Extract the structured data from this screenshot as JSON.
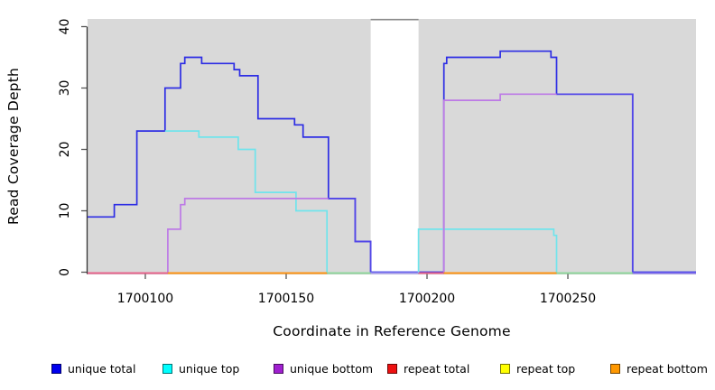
{
  "chart_data": {
    "type": "line",
    "step": true,
    "title": "",
    "xlabel": "Coordinate in Reference Genome",
    "ylabel": "Read Coverage Depth",
    "xlim": [
      1700079.5,
      1700295.5
    ],
    "ylim": [
      0,
      41.3
    ],
    "xticks": [
      1700100,
      1700150,
      1700200,
      1700250
    ],
    "yticks": [
      0,
      10,
      20,
      30,
      40
    ],
    "grid": false,
    "legend_position": "bottom",
    "plot_bg_color": "#d9d9d9",
    "gap_region": {
      "x0": 1700180,
      "x1": 1700197,
      "top_line_color": "#8a8a8a"
    },
    "series": [
      {
        "name": "unique total",
        "line_color": "#2d2de4",
        "segments": [
          [
            [
              1700079.5,
              9
            ],
            [
              1700089,
              9
            ],
            [
              1700089,
              11
            ],
            [
              1700097,
              11
            ],
            [
              1700097,
              23
            ],
            [
              1700107,
              23
            ],
            [
              1700107,
              30
            ],
            [
              1700112.5,
              30
            ],
            [
              1700112.5,
              34
            ],
            [
              1700114,
              34
            ],
            [
              1700114,
              35
            ],
            [
              1700120,
              35
            ],
            [
              1700120,
              34
            ],
            [
              1700131.5,
              34
            ],
            [
              1700131.5,
              33
            ],
            [
              1700133.5,
              33
            ],
            [
              1700133.5,
              32
            ],
            [
              1700140,
              32
            ],
            [
              1700140,
              25
            ],
            [
              1700153,
              25
            ],
            [
              1700153,
              24
            ],
            [
              1700156,
              24
            ],
            [
              1700156,
              22
            ],
            [
              1700165,
              22
            ],
            [
              1700165,
              12
            ],
            [
              1700174.5,
              12
            ],
            [
              1700174.5,
              5
            ],
            [
              1700180,
              5
            ],
            [
              1700180,
              0
            ],
            [
              1700206,
              0
            ],
            [
              1700206,
              34
            ],
            [
              1700207,
              34
            ],
            [
              1700207,
              35
            ],
            [
              1700226,
              35
            ],
            [
              1700226,
              36
            ],
            [
              1700244,
              36
            ],
            [
              1700244,
              35
            ],
            [
              1700246,
              35
            ],
            [
              1700246,
              29
            ],
            [
              1700273,
              29
            ],
            [
              1700273,
              0
            ],
            [
              1700295.5,
              0
            ]
          ]
        ]
      },
      {
        "name": "unique top",
        "line_color": "#70e4ec",
        "segments": [
          [
            [
              1700107,
              23
            ],
            [
              1700119,
              23
            ],
            [
              1700119,
              22
            ],
            [
              1700133,
              22
            ],
            [
              1700133,
              20
            ],
            [
              1700139,
              20
            ],
            [
              1700139,
              13
            ],
            [
              1700153.5,
              13
            ],
            [
              1700153.5,
              10
            ],
            [
              1700164.5,
              10
            ],
            [
              1700164.5,
              0
            ]
          ],
          [
            [
              1700197,
              0
            ],
            [
              1700197,
              7
            ],
            [
              1700245,
              7
            ],
            [
              1700245,
              6
            ],
            [
              1700246,
              6
            ],
            [
              1700246,
              0
            ]
          ]
        ]
      },
      {
        "name": "unique bottom",
        "line_color": "#bd7ae6",
        "segments": [
          [
            [
              1700108,
              0
            ],
            [
              1700108,
              7
            ],
            [
              1700112.5,
              7
            ],
            [
              1700112.5,
              11
            ],
            [
              1700114,
              11
            ],
            [
              1700114,
              12
            ],
            [
              1700165,
              12
            ]
          ],
          [
            [
              1700206,
              0
            ],
            [
              1700206,
              28
            ],
            [
              1700226,
              28
            ],
            [
              1700226,
              29
            ],
            [
              1700246,
              29
            ]
          ]
        ]
      }
    ],
    "overlap_segments": [
      {
        "desc": "unique total + unique bottom coincide",
        "color": "#5246e8",
        "points": [
          [
            1700165,
            12
          ],
          [
            1700174.5,
            12
          ],
          [
            1700174.5,
            5
          ],
          [
            1700180,
            5
          ],
          [
            1700180,
            0
          ]
        ]
      },
      {
        "desc": "unique total + unique bottom coincide",
        "color": "#5246e8",
        "points": [
          [
            1700246,
            29
          ],
          [
            1700273,
            29
          ],
          [
            1700273,
            0
          ]
        ]
      }
    ],
    "baseline_segments": [
      {
        "desc": "repeat lines at zero (left contig)",
        "color": "#e8638c",
        "x0": 1700079.5,
        "x1": 1700108,
        "y": 0
      },
      {
        "desc": "repeat bottom at zero",
        "color": "#ff9412",
        "x0": 1700108,
        "x1": 1700164.5,
        "y": 0
      },
      {
        "desc": "unique top over repeat bottom at zero",
        "color": "#8fd79c",
        "x0": 1700164.5,
        "x1": 1700180,
        "y": 0
      },
      {
        "desc": "unique total + bottom at zero in gap",
        "color": "#a79df0",
        "x0": 1700180,
        "x1": 1700197,
        "y": 0
      },
      {
        "desc": "repeat lines at zero (right contig)",
        "color": "#e8638c",
        "x0": 1700197,
        "x1": 1700206,
        "y": 0
      },
      {
        "desc": "repeat bottom at zero",
        "color": "#ff9412",
        "x0": 1700206,
        "x1": 1700246,
        "y": 0
      },
      {
        "desc": "unique top over repeat bottom at zero",
        "color": "#8fd79c",
        "x0": 1700246,
        "x1": 1700273,
        "y": 0
      },
      {
        "desc": "unique total + bottom at zero",
        "color": "#8674ee",
        "x0": 1700273,
        "x1": 1700295.5,
        "y": 0
      }
    ],
    "legend": [
      {
        "label": "unique total",
        "color": "#0000ee"
      },
      {
        "label": "unique top",
        "color": "#00ffff"
      },
      {
        "label": "unique bottom",
        "color": "#a020d0"
      },
      {
        "label": "repeat total",
        "color": "#ee1111"
      },
      {
        "label": "repeat top",
        "color": "#ffff00"
      },
      {
        "label": "repeat bottom",
        "color": "#ff9800"
      }
    ]
  }
}
